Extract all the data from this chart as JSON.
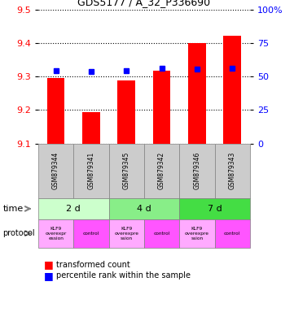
{
  "title": "GDS5177 / A_32_P336690",
  "samples": [
    "GSM879344",
    "GSM879341",
    "GSM879345",
    "GSM879342",
    "GSM879346",
    "GSM879343"
  ],
  "red_values": [
    9.295,
    9.193,
    9.287,
    9.317,
    9.4,
    9.422
  ],
  "blue_values": [
    9.318,
    9.315,
    9.318,
    9.325,
    9.323,
    9.325
  ],
  "ylim": [
    9.1,
    9.5
  ],
  "y_ticks": [
    9.1,
    9.2,
    9.3,
    9.4,
    9.5
  ],
  "y_right_ticks": [
    0,
    25,
    50,
    75,
    100
  ],
  "time_labels": [
    "2 d",
    "4 d",
    "7 d"
  ],
  "time_colors": [
    "#ccffcc",
    "#88ee88",
    "#44dd44"
  ],
  "protocol_labels": [
    "KLF9\noverexpr\nession",
    "control",
    "KLF9\noverexpre\nssion",
    "control",
    "KLF9\noverexpre\nssion",
    "control"
  ],
  "protocol_colors": [
    "#ffaaff",
    "#ff55ff",
    "#ffaaff",
    "#ff55ff",
    "#ffaaff",
    "#ff55ff"
  ],
  "sample_bg_color": "#cccccc",
  "bar_bottom": 9.1,
  "legend_red": "transformed count",
  "legend_blue": "percentile rank within the sample"
}
